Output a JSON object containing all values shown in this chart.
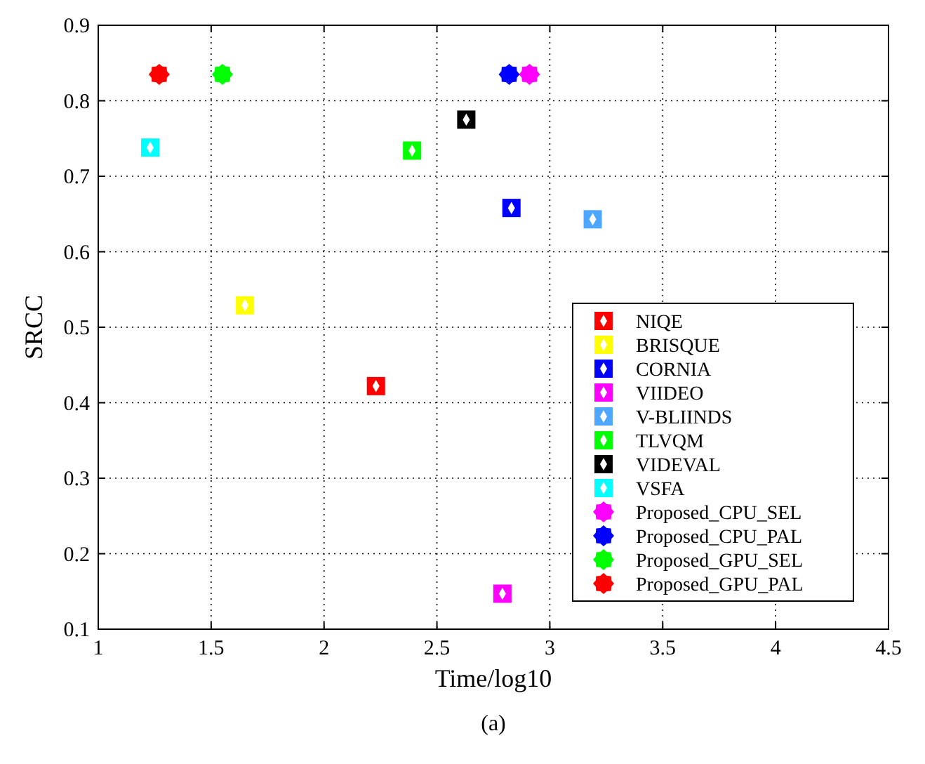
{
  "chart_data": {
    "type": "scatter",
    "xlabel": "Time/log10",
    "ylabel": "SRCC",
    "annotations": [
      "(a)"
    ],
    "xlim": [
      1,
      4.5
    ],
    "xticks": [
      1,
      1.5,
      2,
      2.5,
      3,
      3.5,
      4,
      4.5
    ],
    "ylim": [
      0.1,
      0.9
    ],
    "yticks": [
      0.1,
      0.2,
      0.3,
      0.4,
      0.5,
      0.6,
      0.7,
      0.8,
      0.9
    ],
    "grid": true,
    "legend": "bottom right",
    "series": [
      {
        "name": "NIQE",
        "color": "#ff0000",
        "marker": "square",
        "x": [
          2.23
        ],
        "values": [
          0.422
        ]
      },
      {
        "name": "BRISQUE",
        "color": "#ffff00",
        "marker": "square",
        "x": [
          1.65
        ],
        "values": [
          0.529
        ]
      },
      {
        "name": "CORNIA",
        "color": "#0000ff",
        "marker": "square",
        "x": [
          2.83
        ],
        "values": [
          0.658
        ]
      },
      {
        "name": "VIIDEO",
        "color": "#ff00ff",
        "marker": "square",
        "x": [
          2.79
        ],
        "values": [
          0.147
        ]
      },
      {
        "name": "V-BLIINDS",
        "color": "#4da6ff",
        "marker": "square",
        "x": [
          3.19
        ],
        "values": [
          0.643
        ]
      },
      {
        "name": "TLVQM",
        "color": "#00ff00",
        "marker": "square",
        "x": [
          2.39
        ],
        "values": [
          0.734
        ]
      },
      {
        "name": "VIDEVAL",
        "color": "#000000",
        "marker": "square",
        "x": [
          2.63
        ],
        "values": [
          0.775
        ]
      },
      {
        "name": "VSFA",
        "color": "#00ffff",
        "marker": "square",
        "x": [
          1.23
        ],
        "values": [
          0.738
        ]
      },
      {
        "name": "Proposed_CPU_SEL",
        "color": "#ff00ff",
        "marker": "star",
        "x": [
          2.91
        ],
        "values": [
          0.835
        ]
      },
      {
        "name": "Proposed_CPU_PAL",
        "color": "#0000ff",
        "marker": "star",
        "x": [
          2.82
        ],
        "values": [
          0.835
        ]
      },
      {
        "name": "Proposed_GPU_SEL",
        "color": "#00ff00",
        "marker": "star",
        "x": [
          1.55
        ],
        "values": [
          0.835
        ]
      },
      {
        "name": "Proposed_GPU_PAL",
        "color": "#ff0000",
        "marker": "star",
        "x": [
          1.27
        ],
        "values": [
          0.835
        ]
      }
    ]
  }
}
